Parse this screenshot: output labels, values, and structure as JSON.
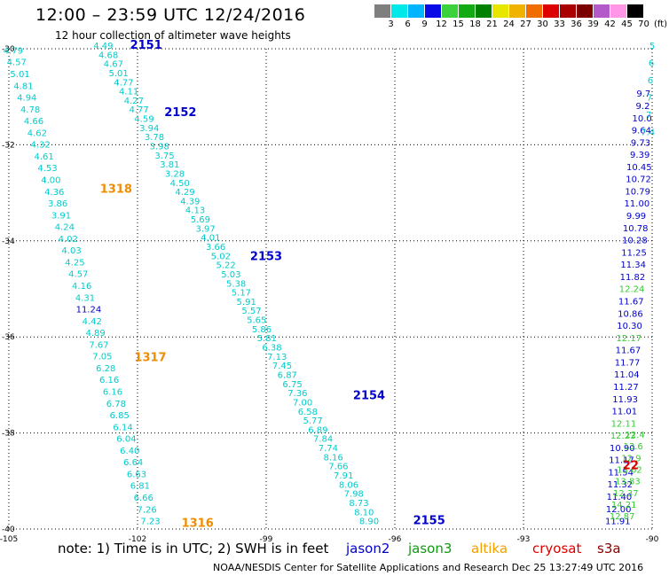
{
  "header": {
    "title": "12:00 – 23:59 UTC 12/24/2016",
    "subtitle": "12 hour collection of altimeter wave heights"
  },
  "scale": {
    "colors": [
      "#7f7f7f",
      "#00e8e8",
      "#00b4ff",
      "#0a0ae6",
      "#3cd23c",
      "#14aa14",
      "#008200",
      "#e6e600",
      "#f0b400",
      "#f06e00",
      "#dc0000",
      "#aa0000",
      "#7d0000",
      "#b45ac8",
      "#ff96e6",
      "#000000"
    ],
    "labels": [
      "3",
      "6",
      "9",
      "12",
      "15",
      "18",
      "21",
      "24",
      "27",
      "30",
      "33",
      "36",
      "39",
      "42",
      "45",
      "70",
      "(ft)"
    ]
  },
  "axes": {
    "lat_labels": [
      "-30",
      "-32",
      "-34",
      "-36",
      "-38",
      "-40"
    ],
    "lon_labels": [
      "-105",
      "-102",
      "-99",
      "-96",
      "-93",
      "-90"
    ],
    "lat_range": [
      -40,
      -30
    ],
    "lon_range": [
      -105,
      -90
    ]
  },
  "passes": [
    {
      "id": "2151",
      "color": "#0000cc",
      "lon": -101.8,
      "lat": -30.0
    },
    {
      "id": "2152",
      "color": "#0000cc",
      "lon": -101.0,
      "lat": -31.4
    },
    {
      "id": "2153",
      "color": "#0000cc",
      "lon": -99.0,
      "lat": -34.4
    },
    {
      "id": "2154",
      "color": "#0000cc",
      "lon": -96.6,
      "lat": -37.3
    },
    {
      "id": "2155",
      "color": "#0000cc",
      "lon": -95.2,
      "lat": -39.9
    },
    {
      "id": "1318",
      "color": "#f08c00",
      "lon": -102.5,
      "lat": -33.0
    },
    {
      "id": "1317",
      "color": "#f08c00",
      "lon": -101.7,
      "lat": -36.5
    },
    {
      "id": "1316",
      "color": "#f08c00",
      "lon": -100.6,
      "lat": -39.95
    },
    {
      "id": "22",
      "color": "#dd0000",
      "lon": -90.5,
      "lat": -38.75
    }
  ],
  "tracks": [
    {
      "name": "left-cyan",
      "color": "#00cccc",
      "lon_start": -104.9,
      "lat_start": -30.1,
      "lon_end": -101.7,
      "lat_end": -39.9,
      "values": [
        "4.79",
        "4.57",
        "5.01",
        "4.81",
        "4.94",
        "4.78",
        "4.66",
        "4.62",
        "4.32",
        "4.61",
        "4.53",
        "4.00",
        "4.36",
        "3.86",
        "3.91",
        "4.24",
        "4.02",
        "4.03",
        "4.25",
        "4.57",
        "4.16",
        "4.31",
        "11.24",
        "4.42",
        "4.89",
        "7.67",
        "7.05",
        "6.28",
        "6.16",
        "6.16",
        "6.78",
        "6.85",
        "6.14",
        "6.04",
        "6.40",
        "6.64",
        "6.63",
        "6.81",
        "6.66",
        "7.26",
        "7.23"
      ],
      "colors": {
        "22": "#0000cc"
      }
    },
    {
      "name": "diag-cyan",
      "color": "#00cccc",
      "lon_start": -102.8,
      "lat_start": -30.0,
      "lon_end": -96.6,
      "lat_end": -39.9,
      "values": [
        "4.49",
        "4.68",
        "4.67",
        "5.01",
        "4.77",
        "4.11",
        "4.27",
        "4.77",
        "4.59",
        "3.94",
        "3.78",
        "3.98",
        "3.75",
        "3.81",
        "3.28",
        "4.50",
        "4.29",
        "4.39",
        "4.13",
        "5.69",
        "3.97",
        "4.01",
        "3.66",
        "5.02",
        "5.22",
        "5.03",
        "5.38",
        "5.17",
        "5.91",
        "5.57",
        "5.65",
        "5.86",
        "5.81",
        "6.38",
        "7.13",
        "7.45",
        "6.87",
        "6.75",
        "7.36",
        "7.00",
        "6.58",
        "5.77",
        "6.89",
        "7.84",
        "7.74",
        "8.16",
        "7.66",
        "7.91",
        "8.06",
        "7.98",
        "8.73",
        "8.10",
        "8.90"
      ]
    },
    {
      "name": "right-blue",
      "color": "#0000cc",
      "lon_start": -90.2,
      "lat_start": -31.0,
      "lon_end": -90.8,
      "lat_end": -39.9,
      "values": [
        "9.7",
        "9.2",
        "10.0",
        "9.64",
        "9.73",
        "9.39",
        "10.45",
        "10.72",
        "10.79",
        "11.00",
        "9.99",
        "10.78",
        "10.28",
        "11.25",
        "11.34",
        "11.82",
        "12.24",
        "11.67",
        "10.86",
        "10.30",
        "12.17",
        "11.67",
        "11.77",
        "11.04",
        "11.27",
        "11.93",
        "11.01",
        "12.11",
        "12.23",
        "10.90",
        "11.17",
        "11.54",
        "11.32",
        "11.40",
        "12.00",
        "11.91"
      ],
      "colors": {
        "16": "#33cc33",
        "20": "#33cc33",
        "27": "#33cc33",
        "28": "#33cc33"
      }
    },
    {
      "name": "right-green",
      "color": "#33cc33",
      "lon_start": -90.4,
      "lat_start": -38.1,
      "lon_end": -90.7,
      "lat_end": -39.8,
      "values": [
        "12.4",
        "13.6",
        "12.9",
        "13.62",
        "13.83",
        "12.37",
        "14.21",
        "12.87"
      ]
    },
    {
      "name": "right-top-cyan",
      "color": "#00cccc",
      "lon_start": -90.0,
      "lat_start": -30.0,
      "lon_end": -90.1,
      "lat_end": -31.8,
      "values": [
        "5",
        "6",
        "6",
        "7",
        "7",
        "7.4"
      ]
    }
  ],
  "legend": {
    "note": "note:  1) Time is in UTC;  2) SWH is in feet",
    "sats": [
      {
        "name": "jason2",
        "color": "#0000cc"
      },
      {
        "name": "jason3",
        "color": "#119911"
      },
      {
        "name": "altika",
        "color": "#f0a000"
      },
      {
        "name": "cryosat",
        "color": "#dd0000"
      },
      {
        "name": "s3a",
        "color": "#880000"
      }
    ]
  },
  "credit": "NOAA/NESDIS Center for Satellite Applications and Research    Dec 25 13:27:49 UTC 2016"
}
